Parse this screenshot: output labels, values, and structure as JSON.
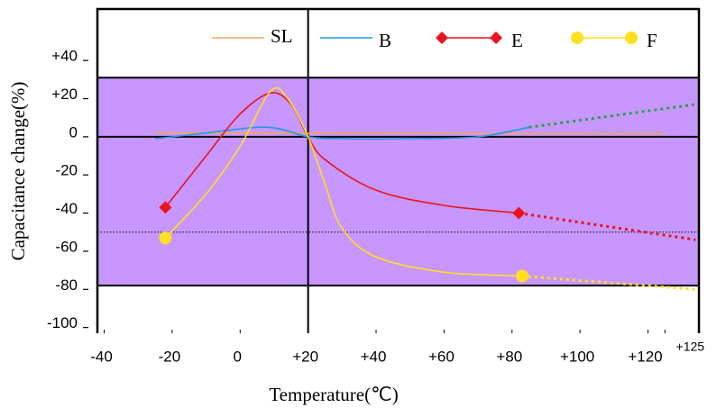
{
  "chart_data": {
    "type": "line",
    "x_label": "Temperature(℃)",
    "y_label": "Capacitance change(%)",
    "xlim": [
      -42,
      135
    ],
    "ylim": [
      -103,
      67
    ],
    "xticks": [
      -40,
      -20,
      0,
      {
        "value": 20,
        "label": "+20"
      },
      {
        "value": 40,
        "label": "+40"
      },
      {
        "value": 60,
        "label": "+60"
      },
      {
        "value": 80,
        "label": "+80"
      },
      {
        "value": 100,
        "label": "+100"
      },
      {
        "value": 120,
        "label": "+120"
      },
      {
        "value": 125,
        "label": "+125"
      }
    ],
    "yticks": [
      {
        "value": 40,
        "label": "+40"
      },
      {
        "value": 20,
        "label": "+20"
      },
      0,
      -20,
      -40,
      -60,
      -80,
      -100
    ],
    "band": [
      -78,
      31
    ],
    "band_color": "#c896ff",
    "ref_line": -50,
    "vline": 20,
    "series": [
      {
        "name": "SL",
        "color": "#f4a460",
        "marker": null,
        "x": [
          -25,
          125
        ],
        "values": [
          2,
          1.5
        ]
      },
      {
        "name": "B",
        "color": "#1e9be0",
        "marker": null,
        "x": [
          -25,
          -10,
          5,
          12,
          20,
          30,
          50,
          70,
          85
        ],
        "values": [
          -1,
          2,
          5,
          4,
          0,
          -1,
          -1,
          0,
          5
        ],
        "ext_x": [
          85,
          134
        ],
        "ext_values": [
          5,
          17
        ],
        "ext_color": "#2e9e4a"
      },
      {
        "name": "E",
        "color": "#e8141e",
        "marker": "diamond",
        "x": [
          -22,
          -10,
          0,
          9,
          15,
          20,
          25,
          40,
          60,
          82
        ],
        "values": [
          -37,
          -10,
          12,
          23,
          17,
          0,
          -12,
          -28,
          -36,
          -40
        ],
        "ext_x": [
          82,
          134
        ],
        "ext_values": [
          -40,
          -54
        ],
        "ext_color": "#e8141e"
      },
      {
        "name": "F",
        "color": "#ffe01e",
        "marker": "circle",
        "x": [
          -22,
          -10,
          0,
          9,
          14,
          20,
          25,
          30,
          40,
          60,
          83
        ],
        "values": [
          -53,
          -30,
          -5,
          24,
          20,
          0,
          -25,
          -48,
          -63,
          -71,
          -73
        ],
        "ext_x": [
          83,
          134
        ],
        "ext_values": [
          -73,
          -80
        ],
        "ext_color": "#ffe01e"
      }
    ]
  }
}
